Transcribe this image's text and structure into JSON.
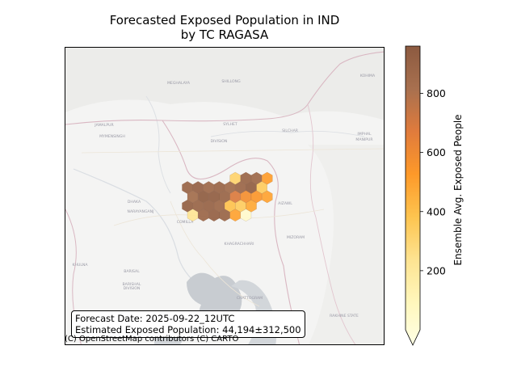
{
  "title": {
    "line1": "Forecasted Exposed Population in IND",
    "line2": "by TC RAGASA"
  },
  "info": {
    "forecast_date": "Forecast Date: 2025-09-22_12UTC",
    "exposed_population": "Estimated Exposed Population: 44,194±312,500"
  },
  "attribution": "(C) OpenStreetMap contributors (C) CARTO",
  "colorbar": {
    "label": "Ensemble Avg. Exposed People",
    "min": 0,
    "max": 960,
    "ticks": [
      {
        "value": 200,
        "label": "200"
      },
      {
        "value": 400,
        "label": "400"
      },
      {
        "value": 600,
        "label": "600"
      },
      {
        "value": 800,
        "label": "800"
      }
    ],
    "colors": [
      "#ffffe5",
      "#fff7bc",
      "#fee391",
      "#fec44f",
      "#fe9929",
      "#e07b3c",
      "#a8704f",
      "#8c5a40"
    ]
  },
  "map_labels": [
    {
      "text": "MEGHALAYA"
    },
    {
      "text": "SHILLONG"
    },
    {
      "text": "KOHIMA"
    },
    {
      "text": "SYLHET"
    },
    {
      "text": "DIVISION"
    },
    {
      "text": "SILCHAR"
    },
    {
      "text": "IMPHAL"
    },
    {
      "text": "MANIPUR"
    },
    {
      "text": "MYMENSINGH"
    },
    {
      "text": "JAMALPUR"
    },
    {
      "text": "DHAKA"
    },
    {
      "text": "NARAYANGANJ"
    },
    {
      "text": "AIZAWL"
    },
    {
      "text": "MIZORAM"
    },
    {
      "text": "KHULNA"
    },
    {
      "text": "BARISAL"
    },
    {
      "text": "BARISHAL"
    },
    {
      "text": "DIVISION"
    },
    {
      "text": "CHATTOGRAM"
    },
    {
      "text": "COMILLA"
    },
    {
      "text": "KHAGRACHHARI"
    },
    {
      "text": "RAKHINE STATE"
    }
  ],
  "hex_cells": [
    {
      "q": 0,
      "r": 0,
      "value": 900
    },
    {
      "q": 1,
      "r": 0,
      "value": 920
    },
    {
      "q": 2,
      "r": 0,
      "value": 880
    },
    {
      "q": 3,
      "r": 0,
      "value": 900
    },
    {
      "q": 4,
      "r": 0,
      "value": 860
    },
    {
      "q": 5,
      "r": 0,
      "value": 890
    },
    {
      "q": 6,
      "r": 0,
      "value": 940
    },
    {
      "q": 0,
      "r": 1,
      "value": 850
    },
    {
      "q": 1,
      "r": 1,
      "value": 950
    },
    {
      "q": 2,
      "r": 1,
      "value": 940
    },
    {
      "q": 3,
      "r": 1,
      "value": 900
    },
    {
      "q": 4,
      "r": 1,
      "value": 700
    },
    {
      "q": 5,
      "r": 1,
      "value": 600
    },
    {
      "q": 6,
      "r": 1,
      "value": 560
    },
    {
      "q": 7,
      "r": 1,
      "value": 520
    },
    {
      "q": 0,
      "r": 2,
      "value": 930
    },
    {
      "q": 1,
      "r": 2,
      "value": 900
    },
    {
      "q": 2,
      "r": 2,
      "value": 910
    },
    {
      "q": 3,
      "r": 2,
      "value": 880
    },
    {
      "q": 4,
      "r": 2,
      "value": 420
    },
    {
      "q": 5,
      "r": 2,
      "value": 380
    },
    {
      "q": 6,
      "r": 2,
      "value": 500
    },
    {
      "q": 0,
      "r": 3,
      "value": 260
    },
    {
      "q": 1,
      "r": 3,
      "value": 890
    },
    {
      "q": 2,
      "r": 3,
      "value": 920
    },
    {
      "q": 3,
      "r": 3,
      "value": 900
    },
    {
      "q": 4,
      "r": 3,
      "value": 520
    },
    {
      "q": 5,
      "r": 3,
      "value": 80
    },
    {
      "q": 4,
      "r": -1,
      "value": 350
    },
    {
      "q": 5,
      "r": -1,
      "value": 900
    },
    {
      "q": 6,
      "r": -1,
      "value": 880
    },
    {
      "q": 7,
      "r": -1,
      "value": 540
    },
    {
      "q": 7,
      "r": 0,
      "value": 380
    }
  ]
}
